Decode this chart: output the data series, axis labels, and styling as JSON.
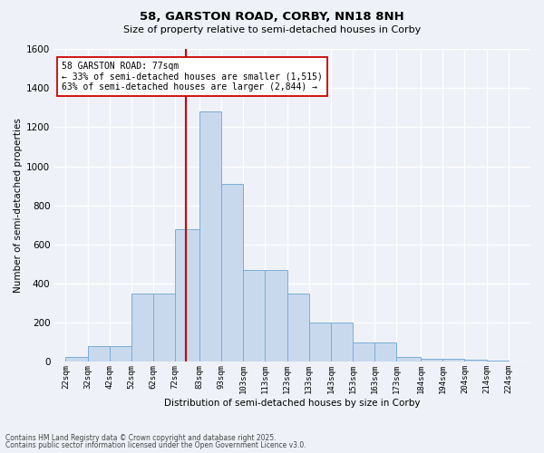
{
  "title1": "58, GARSTON ROAD, CORBY, NN18 8NH",
  "title2": "Size of property relative to semi-detached houses in Corby",
  "xlabel": "Distribution of semi-detached houses by size in Corby",
  "ylabel": "Number of semi-detached properties",
  "footnote1": "Contains HM Land Registry data © Crown copyright and database right 2025.",
  "footnote2": "Contains public sector information licensed under the Open Government Licence v3.0.",
  "bar_color": "#c8d9ee",
  "bar_edge_color": "#7aadd4",
  "bar_left_edges": [
    22,
    32,
    42,
    52,
    62,
    72,
    83,
    93,
    103,
    113,
    123,
    133,
    143,
    153,
    163,
    173,
    184,
    194,
    204,
    214
  ],
  "bar_widths": [
    10,
    10,
    10,
    10,
    10,
    11,
    10,
    10,
    10,
    10,
    10,
    10,
    10,
    10,
    10,
    11,
    10,
    10,
    10,
    10
  ],
  "bar_heights": [
    25,
    80,
    80,
    350,
    350,
    680,
    1280,
    910,
    470,
    470,
    350,
    200,
    200,
    100,
    100,
    25,
    15,
    15,
    10,
    5
  ],
  "tick_labels": [
    "22sqm",
    "32sqm",
    "42sqm",
    "52sqm",
    "62sqm",
    "72sqm",
    "83sqm",
    "93sqm",
    "103sqm",
    "113sqm",
    "123sqm",
    "133sqm",
    "143sqm",
    "153sqm",
    "163sqm",
    "173sqm",
    "184sqm",
    "194sqm",
    "204sqm",
    "214sqm",
    "224sqm"
  ],
  "tick_positions": [
    22,
    32,
    42,
    52,
    62,
    72,
    83,
    93,
    103,
    113,
    123,
    133,
    143,
    153,
    163,
    173,
    184,
    194,
    204,
    214,
    224
  ],
  "vline_x": 77,
  "vline_color": "#cc0000",
  "ylim": [
    0,
    1600
  ],
  "yticks": [
    0,
    200,
    400,
    600,
    800,
    1000,
    1200,
    1400,
    1600
  ],
  "annotation_title": "58 GARSTON ROAD: 77sqm",
  "annotation_line1": "← 33% of semi-detached houses are smaller (1,515)",
  "annotation_line2": "63% of semi-detached houses are larger (2,844) →",
  "annotation_box_color": "#ffffff",
  "annotation_box_edge": "#cc0000",
  "background_color": "#eef2f8",
  "xlim_left": 17,
  "xlim_right": 234
}
